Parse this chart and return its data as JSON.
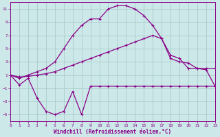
{
  "xlabel": "Windchill (Refroidissement éolien,°C)",
  "xlim": [
    0,
    23
  ],
  "ylim": [
    -6,
    12
  ],
  "yticks": [
    -5,
    -3,
    -1,
    1,
    3,
    5,
    7,
    9,
    11
  ],
  "xticks": [
    0,
    1,
    2,
    3,
    4,
    5,
    6,
    7,
    8,
    9,
    10,
    11,
    12,
    13,
    14,
    15,
    16,
    17,
    18,
    19,
    20,
    21,
    22,
    23
  ],
  "background_color": "#cde8e8",
  "grid_color": "#aacccc",
  "line_color": "#880088",
  "line1_x": [
    0,
    1,
    2,
    3,
    4,
    5,
    6,
    7,
    8,
    9,
    10,
    11,
    12,
    13,
    14,
    15,
    16,
    17,
    18,
    19,
    20,
    21,
    22,
    23
  ],
  "line1_y": [
    1,
    -0.5,
    0.5,
    -2.5,
    -4.5,
    -5.0,
    -4.5,
    -1.5,
    -5.0,
    -0.7,
    -0.7,
    -0.7,
    -0.7,
    -0.7,
    -0.7,
    -0.7,
    -0.7,
    -0.7,
    -0.7,
    -0.7,
    -0.7,
    -0.7,
    -0.7,
    -0.7
  ],
  "line2_x": [
    0,
    1,
    2,
    3,
    4,
    5,
    6,
    7,
    8,
    9,
    10,
    11,
    12,
    13,
    14,
    15,
    16,
    17,
    18,
    19,
    20,
    21,
    22,
    23
  ],
  "line2_y": [
    1,
    0.7,
    0.8,
    1.0,
    1.2,
    1.5,
    2.0,
    2.5,
    3.0,
    3.5,
    4.0,
    4.5,
    5.0,
    5.5,
    6.0,
    6.5,
    7.0,
    6.5,
    3.5,
    3.0,
    2.8,
    2.0,
    1.8,
    -0.7
  ],
  "line3_x": [
    0,
    1,
    2,
    3,
    4,
    5,
    6,
    7,
    8,
    9,
    10,
    11,
    12,
    13,
    14,
    15,
    16,
    17,
    18,
    19,
    20,
    21,
    22,
    23
  ],
  "line3_y": [
    1,
    0.5,
    1.0,
    1.5,
    2.0,
    3.0,
    5.0,
    7.0,
    8.5,
    9.5,
    9.5,
    11.0,
    11.5,
    11.5,
    11.0,
    10.0,
    8.5,
    6.5,
    4.0,
    3.5,
    2.0,
    2.0,
    2.0,
    2.0
  ]
}
